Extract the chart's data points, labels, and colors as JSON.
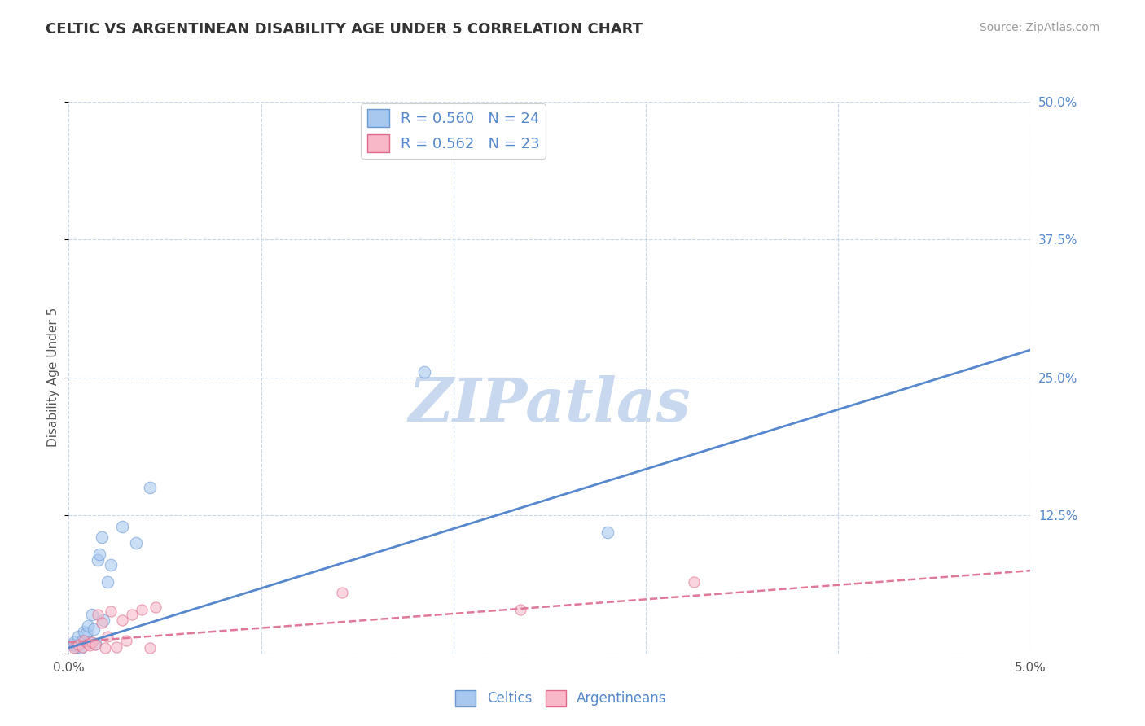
{
  "title": "CELTIC VS ARGENTINEAN DISABILITY AGE UNDER 5 CORRELATION CHART",
  "source": "Source: ZipAtlas.com",
  "ylabel": "Disability Age Under 5",
  "xlim": [
    0.0,
    5.0
  ],
  "ylim": [
    0.0,
    50.0
  ],
  "grid_color": "#c8d8e8",
  "background_color": "#ffffff",
  "watermark": "ZIPatlas",
  "watermark_color": "#c8d8ee",
  "celtics_color": "#a8c8f0",
  "argentineans_color": "#f8b8c8",
  "celtics_edge_color": "#6898d0",
  "argentineans_edge_color": "#e06888",
  "celtics_line_color": "#5588cc",
  "argentineans_line_color": "#e07898",
  "legend_r1": "R = 0.560",
  "legend_n1": "N = 24",
  "legend_r2": "R = 0.562",
  "legend_n2": "N = 23",
  "celtics_x": [
    0.02,
    0.03,
    0.04,
    0.05,
    0.06,
    0.07,
    0.08,
    0.09,
    0.1,
    0.11,
    0.12,
    0.13,
    0.14,
    0.15,
    0.16,
    0.17,
    0.18,
    0.2,
    0.22,
    0.28,
    0.35,
    0.42,
    1.85,
    2.8
  ],
  "celtics_y": [
    0.8,
    1.0,
    0.6,
    1.5,
    0.5,
    1.2,
    2.0,
    1.8,
    2.5,
    1.0,
    3.5,
    2.2,
    0.9,
    8.5,
    9.0,
    10.5,
    3.0,
    6.5,
    8.0,
    11.5,
    10.0,
    15.0,
    25.5,
    11.0
  ],
  "argentineans_x": [
    0.03,
    0.05,
    0.07,
    0.08,
    0.1,
    0.11,
    0.12,
    0.14,
    0.15,
    0.17,
    0.19,
    0.2,
    0.22,
    0.25,
    0.28,
    0.3,
    0.33,
    0.38,
    0.42,
    0.45,
    1.42,
    2.35,
    3.25
  ],
  "argentineans_y": [
    0.5,
    0.8,
    0.6,
    1.2,
    0.9,
    0.7,
    1.0,
    0.8,
    3.5,
    2.8,
    0.5,
    1.5,
    3.8,
    0.6,
    3.0,
    1.2,
    3.5,
    4.0,
    0.5,
    4.2,
    5.5,
    4.0,
    6.5
  ],
  "celtics_line_x": [
    0.0,
    5.0
  ],
  "celtics_line_y": [
    0.5,
    27.5
  ],
  "argentineans_line_x": [
    0.0,
    5.0
  ],
  "argentineans_line_y": [
    1.0,
    7.5
  ]
}
